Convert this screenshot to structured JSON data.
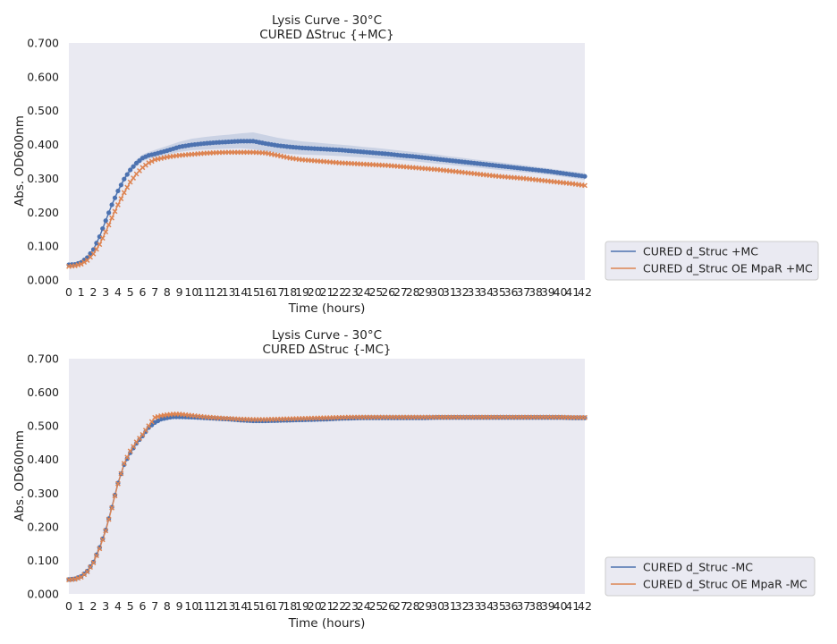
{
  "colors": {
    "blue": "#4c72b0",
    "orange": "#dd8452",
    "plot_bg": "#eaeaf2",
    "band_blue": "#4c72b0"
  },
  "chart_data": [
    {
      "type": "line",
      "title_line1": "Lysis Curve - 30°C",
      "title_line2": "CURED ΔStruc {+MC}",
      "xlabel": "Time (hours)",
      "ylabel": "Abs. OD600nm",
      "xlim": [
        0,
        42
      ],
      "ylim": [
        0,
        0.7
      ],
      "yticks": [
        "0.000",
        "0.100",
        "0.200",
        "0.300",
        "0.400",
        "0.500",
        "0.600",
        "0.700"
      ],
      "xticks": [
        "0",
        "1",
        "2",
        "3",
        "4",
        "5",
        "6",
        "7",
        "8",
        "9",
        "10",
        "11",
        "12",
        "13",
        "14",
        "15",
        "16",
        "17",
        "18",
        "19",
        "20",
        "21",
        "22",
        "23",
        "24",
        "25",
        "26",
        "27",
        "28",
        "29",
        "30",
        "31",
        "32",
        "33",
        "34",
        "35",
        "36",
        "37",
        "38",
        "39",
        "40",
        "41",
        "42"
      ],
      "legend_position": "lower-right-outside",
      "series": [
        {
          "name": "CURED d_Struc +MC",
          "color": "#4c72b0",
          "marker": "circle",
          "band": true,
          "x": [
            0,
            0.5,
            1,
            1.5,
            2,
            2.5,
            3,
            3.5,
            4,
            4.5,
            5,
            5.5,
            6,
            6.5,
            7,
            8,
            9,
            10,
            11,
            12,
            13,
            14,
            15,
            16,
            17,
            18,
            19,
            20,
            21,
            22,
            23,
            24,
            25,
            26,
            27,
            28,
            29,
            30,
            31,
            32,
            33,
            34,
            35,
            36,
            37,
            38,
            39,
            40,
            41,
            42
          ],
          "y": [
            0.045,
            0.046,
            0.052,
            0.066,
            0.09,
            0.128,
            0.175,
            0.222,
            0.263,
            0.298,
            0.325,
            0.345,
            0.36,
            0.368,
            0.372,
            0.382,
            0.393,
            0.399,
            0.403,
            0.406,
            0.408,
            0.41,
            0.41,
            0.403,
            0.397,
            0.393,
            0.39,
            0.388,
            0.386,
            0.384,
            0.381,
            0.378,
            0.375,
            0.372,
            0.368,
            0.365,
            0.361,
            0.357,
            0.353,
            0.349,
            0.345,
            0.341,
            0.337,
            0.333,
            0.329,
            0.325,
            0.321,
            0.316,
            0.311,
            0.306
          ],
          "y_upper": [
            0.05,
            0.05,
            0.056,
            0.07,
            0.094,
            0.132,
            0.18,
            0.228,
            0.27,
            0.306,
            0.334,
            0.355,
            0.37,
            0.378,
            0.384,
            0.396,
            0.408,
            0.417,
            0.422,
            0.426,
            0.429,
            0.433,
            0.436,
            0.428,
            0.42,
            0.414,
            0.409,
            0.406,
            0.403,
            0.4,
            0.397,
            0.393,
            0.39,
            0.386,
            0.382,
            0.378,
            0.374,
            0.37,
            0.365,
            0.361,
            0.356,
            0.352,
            0.348,
            0.343,
            0.339,
            0.334,
            0.33,
            0.325,
            0.32,
            0.315
          ],
          "y_lower": [
            0.04,
            0.042,
            0.048,
            0.062,
            0.086,
            0.124,
            0.17,
            0.216,
            0.256,
            0.29,
            0.316,
            0.335,
            0.35,
            0.358,
            0.362,
            0.37,
            0.378,
            0.383,
            0.385,
            0.387,
            0.388,
            0.389,
            0.386,
            0.38,
            0.375,
            0.372,
            0.37,
            0.369,
            0.368,
            0.366,
            0.364,
            0.362,
            0.359,
            0.357,
            0.354,
            0.351,
            0.347,
            0.343,
            0.34,
            0.336,
            0.333,
            0.329,
            0.325,
            0.322,
            0.318,
            0.315,
            0.311,
            0.306,
            0.301,
            0.296
          ]
        },
        {
          "name": "CURED d_Struc OE MpaR +MC",
          "color": "#dd8452",
          "marker": "x",
          "band": false,
          "x": [
            0,
            0.5,
            1,
            1.5,
            2,
            2.5,
            3,
            3.5,
            4,
            4.5,
            5,
            5.5,
            6,
            6.5,
            7,
            8,
            9,
            10,
            11,
            12,
            13,
            14,
            15,
            16,
            17,
            18,
            19,
            20,
            21,
            22,
            23,
            24,
            25,
            26,
            27,
            28,
            29,
            30,
            31,
            32,
            33,
            34,
            35,
            36,
            37,
            38,
            39,
            40,
            41,
            42
          ],
          "y": [
            0.04,
            0.042,
            0.047,
            0.058,
            0.077,
            0.105,
            0.142,
            0.183,
            0.222,
            0.258,
            0.289,
            0.313,
            0.332,
            0.346,
            0.355,
            0.363,
            0.368,
            0.371,
            0.374,
            0.376,
            0.377,
            0.377,
            0.377,
            0.375,
            0.368,
            0.36,
            0.355,
            0.352,
            0.349,
            0.346,
            0.344,
            0.342,
            0.34,
            0.338,
            0.335,
            0.332,
            0.329,
            0.326,
            0.322,
            0.318,
            0.314,
            0.31,
            0.306,
            0.303,
            0.3,
            0.296,
            0.292,
            0.288,
            0.284,
            0.279
          ]
        }
      ]
    },
    {
      "type": "line",
      "title_line1": "Lysis Curve - 30°C",
      "title_line2": "CURED ΔStruc {-MC}",
      "xlabel": "Time (hours)",
      "ylabel": "Abs. OD600nm",
      "xlim": [
        0,
        42
      ],
      "ylim": [
        0,
        0.7
      ],
      "yticks": [
        "0.000",
        "0.100",
        "0.200",
        "0.300",
        "0.400",
        "0.500",
        "0.600",
        "0.700"
      ],
      "xticks": [
        "0",
        "1",
        "2",
        "3",
        "4",
        "5",
        "6",
        "7",
        "8",
        "9",
        "10",
        "11",
        "12",
        "13",
        "14",
        "15",
        "16",
        "17",
        "18",
        "19",
        "20",
        "21",
        "22",
        "23",
        "24",
        "25",
        "26",
        "27",
        "28",
        "29",
        "30",
        "31",
        "32",
        "33",
        "34",
        "35",
        "36",
        "37",
        "38",
        "39",
        "40",
        "41",
        "42"
      ],
      "legend_position": "lower-right-outside",
      "series": [
        {
          "name": "CURED d_Struc -MC",
          "color": "#4c72b0",
          "marker": "circle",
          "band": true,
          "x": [
            0,
            0.5,
            1,
            1.5,
            2,
            2.5,
            3,
            3.5,
            4,
            4.5,
            5,
            5.5,
            6,
            6.5,
            7,
            7.5,
            8,
            8.5,
            9,
            10,
            11,
            12,
            13,
            14,
            15,
            16,
            17,
            18,
            19,
            20,
            21,
            22,
            23,
            24,
            25,
            26,
            27,
            28,
            29,
            30,
            31,
            32,
            33,
            34,
            35,
            36,
            37,
            38,
            39,
            40,
            41,
            42
          ],
          "y": [
            0.043,
            0.045,
            0.052,
            0.068,
            0.095,
            0.138,
            0.19,
            0.258,
            0.33,
            0.385,
            0.42,
            0.448,
            0.47,
            0.495,
            0.51,
            0.52,
            0.524,
            0.527,
            0.527,
            0.526,
            0.524,
            0.522,
            0.52,
            0.517,
            0.515,
            0.515,
            0.516,
            0.517,
            0.518,
            0.519,
            0.52,
            0.522,
            0.523,
            0.524,
            0.524,
            0.524,
            0.524,
            0.524,
            0.524,
            0.525,
            0.525,
            0.525,
            0.525,
            0.525,
            0.525,
            0.525,
            0.525,
            0.525,
            0.525,
            0.525,
            0.524,
            0.524
          ],
          "y_upper": [
            0.047,
            0.049,
            0.056,
            0.072,
            0.099,
            0.142,
            0.194,
            0.262,
            0.334,
            0.39,
            0.425,
            0.453,
            0.475,
            0.5,
            0.516,
            0.526,
            0.53,
            0.532,
            0.532,
            0.531,
            0.529,
            0.527,
            0.525,
            0.522,
            0.52,
            0.52,
            0.521,
            0.522,
            0.523,
            0.524,
            0.525,
            0.527,
            0.528,
            0.529,
            0.529,
            0.529,
            0.529,
            0.529,
            0.529,
            0.53,
            0.53,
            0.53,
            0.53,
            0.53,
            0.53,
            0.53,
            0.53,
            0.53,
            0.53,
            0.53,
            0.529,
            0.529
          ],
          "y_lower": [
            0.039,
            0.041,
            0.048,
            0.064,
            0.091,
            0.134,
            0.186,
            0.254,
            0.326,
            0.38,
            0.415,
            0.443,
            0.465,
            0.49,
            0.504,
            0.514,
            0.518,
            0.522,
            0.522,
            0.521,
            0.519,
            0.517,
            0.515,
            0.512,
            0.51,
            0.51,
            0.511,
            0.512,
            0.513,
            0.514,
            0.515,
            0.517,
            0.518,
            0.519,
            0.519,
            0.519,
            0.519,
            0.519,
            0.519,
            0.52,
            0.52,
            0.52,
            0.52,
            0.52,
            0.52,
            0.52,
            0.52,
            0.52,
            0.52,
            0.52,
            0.519,
            0.519
          ]
        },
        {
          "name": "CURED d_Struc OE MpaR -MC",
          "color": "#dd8452",
          "marker": "x",
          "band": false,
          "x": [
            0,
            0.5,
            1,
            1.5,
            2,
            2.5,
            3,
            3.5,
            4,
            4.5,
            5,
            5.5,
            6,
            6.5,
            7,
            7.5,
            8,
            8.5,
            9,
            10,
            11,
            12,
            13,
            14,
            15,
            16,
            17,
            18,
            19,
            20,
            21,
            22,
            23,
            24,
            25,
            26,
            27,
            28,
            29,
            30,
            31,
            32,
            33,
            34,
            35,
            36,
            37,
            38,
            39,
            40,
            41,
            42
          ],
          "y": [
            0.042,
            0.044,
            0.05,
            0.066,
            0.093,
            0.135,
            0.188,
            0.256,
            0.328,
            0.388,
            0.425,
            0.452,
            0.474,
            0.5,
            0.525,
            0.53,
            0.533,
            0.535,
            0.535,
            0.531,
            0.527,
            0.524,
            0.522,
            0.52,
            0.519,
            0.519,
            0.52,
            0.521,
            0.522,
            0.523,
            0.524,
            0.525,
            0.526,
            0.526,
            0.526,
            0.526,
            0.526,
            0.526,
            0.526,
            0.526,
            0.526,
            0.526,
            0.526,
            0.526,
            0.526,
            0.526,
            0.526,
            0.526,
            0.526,
            0.526,
            0.525,
            0.525
          ]
        }
      ]
    }
  ]
}
